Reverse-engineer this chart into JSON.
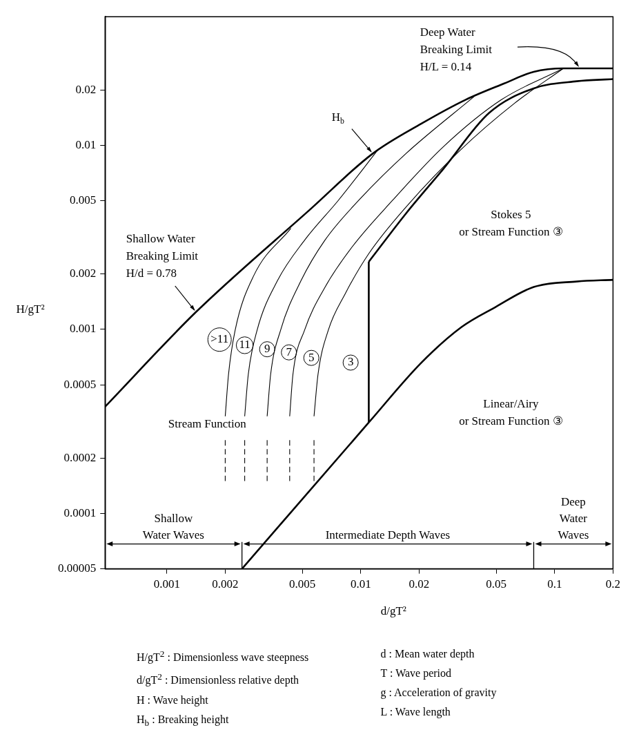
{
  "chart_data": {
    "type": "line",
    "xlabel": "d/gT²",
    "ylabel": "H/gT²",
    "log": "xy",
    "xlim": [
      0.00048,
      0.2
    ],
    "ylim": [
      5e-05,
      0.05
    ],
    "xticks": [
      0.001,
      0.002,
      0.005,
      0.01,
      0.02,
      0.05,
      0.1,
      0.2
    ],
    "yticks": [
      {
        "value": 5e-05,
        "label": "0.00005"
      },
      0.0001,
      0.0002,
      0.0005,
      0.001,
      0.002,
      0.005,
      0.01,
      0.02
    ],
    "series": [
      {
        "color": "#000000",
        "x": [
          0.00048,
          0.00141,
          0.0055,
          0.0115,
          0.0205,
          0.0348,
          0.055,
          0.078,
          0.111,
          0.2
        ],
        "values": [
          0.00038,
          0.00124,
          0.0045,
          0.009,
          0.0131,
          0.0177,
          0.0217,
          0.0251,
          0.0262,
          0.0262
        ]
      },
      {
        "color": "#000000",
        "x": [
          0.011,
          0.0171,
          0.0267,
          0.0458,
          0.078,
          0.13,
          0.2
        ],
        "values": [
          0.00233,
          0.00426,
          0.00746,
          0.01496,
          0.0204,
          0.0223,
          0.0229
        ]
      },
      {
        "color": "#000000",
        "x": [
          0.011,
          0.011
        ],
        "values": [
          0.000312,
          0.00233
        ]
      },
      {
        "color": "#000000",
        "x": [
          0.00244,
          0.011,
          0.0205,
          0.0331,
          0.0494,
          0.078,
          0.13,
          0.2
        ],
        "values": [
          5e-05,
          0.000312,
          0.000658,
          0.00103,
          0.00132,
          0.0017,
          0.00182,
          0.00186
        ]
      },
      {
        "color": "#000000",
        "x": [
          0.002,
          0.00208,
          0.00225,
          0.0028,
          0.00436
        ],
        "values": [
          0.000337,
          0.00057,
          0.00099,
          0.00195,
          0.00354
        ]
      },
      {
        "color": "#000000",
        "x": [
          0.00252,
          0.00263,
          0.00292,
          0.00372,
          0.00513,
          0.00767,
          0.0124
        ],
        "values": [
          0.000337,
          0.00057,
          0.00099,
          0.00184,
          0.00305,
          0.00503,
          0.0096
        ]
      },
      {
        "color": "#000000",
        "x": [
          0.00329,
          0.00343,
          0.00386,
          0.00492,
          0.00653,
          0.00977,
          0.01714,
          0.0384
        ],
        "values": [
          0.000337,
          0.00057,
          0.00099,
          0.00184,
          0.00305,
          0.00503,
          0.00904,
          0.0184
        ]
      },
      {
        "color": "#000000",
        "x": [
          0.0043,
          0.00447,
          0.00513,
          0.00653,
          0.00901,
          0.0146,
          0.0267,
          0.053,
          0.111
        ],
        "values": [
          0.000337,
          0.00057,
          0.00099,
          0.00169,
          0.0028,
          0.00503,
          0.00984,
          0.01767,
          0.0262
        ]
      },
      {
        "color": "#000000",
        "x": [
          0.00574,
          0.00602,
          0.0068,
          0.00831,
          0.011,
          0.01714,
          0.0327,
          0.0622,
          0.111
        ],
        "values": [
          0.000337,
          0.00057,
          0.00099,
          0.00156,
          0.00258,
          0.00463,
          0.00944,
          0.01695,
          0.0262
        ]
      },
      {
        "color": "#000000",
        "line_style": "dashed",
        "x": [
          0.002,
          0.002
        ],
        "values": [
          0.00015,
          0.00025
        ]
      },
      {
        "color": "#000000",
        "line_style": "dashed",
        "x": [
          0.00252,
          0.00252
        ],
        "values": [
          0.00015,
          0.00025
        ]
      },
      {
        "color": "#000000",
        "line_style": "dashed",
        "x": [
          0.00329,
          0.00329
        ],
        "values": [
          0.00015,
          0.00025
        ]
      },
      {
        "color": "#000000",
        "line_style": "dashed",
        "x": [
          0.0043,
          0.0043
        ],
        "values": [
          0.00015,
          0.00025
        ]
      },
      {
        "color": "#000000",
        "line_style": "dashed",
        "x": [
          0.00574,
          0.00574
        ],
        "values": [
          0.00015,
          0.00025
        ]
      },
      {
        "color": "#000000",
        "x": [
          0.00244,
          0.00244
        ],
        "values": [
          5e-05,
          7e-05
        ]
      },
      {
        "color": "#000000",
        "x": [
          0.078,
          0.078
        ],
        "values": [
          5e-05,
          7e-05
        ]
      }
    ],
    "annotations": [
      {
        "text": "H$_{b}$",
        "x": 0.0115,
        "y": 0.009
      },
      {
        "text": "Shallow Water\nBreaking Limit\nH/d = 0.78",
        "x": 0.00141,
        "y": 0.00124
      },
      {
        "text": ">11",
        "x": 0.00187,
        "y": 0.00088
      },
      {
        "text": "11",
        "x": 0.00252,
        "y": 0.00082
      },
      {
        "text": "9",
        "x": 0.00329,
        "y": 0.00078
      },
      {
        "text": "7",
        "x": 0.00426,
        "y": 0.00075
      },
      {
        "text": "5",
        "x": 0.00556,
        "y": 0.0007
      },
      {
        "text": "3",
        "x": 0.00887,
        "y": 0.00066
      },
      "Deep Water\nBreaking Limit\nH/L = 0.14",
      "Stokes 5\nor Stream Function ③",
      "Linear/Airy\nor Stream Function ③",
      "Stream Function",
      "Shallow\nWater Waves",
      "Intermediate Depth Waves",
      "Deep\nWater\nWaves",
      "H/gT$^{2}$ : Dimensionless wave steepness",
      "d/gT$^{2}$ : Dimensionless relative depth",
      "H : Wave height",
      "H$_{b}$ : Breaking height",
      "d : Mean water depth",
      "T : Wave period",
      "g : Acceleration of gravity",
      "L : Wave length"
    ]
  }
}
